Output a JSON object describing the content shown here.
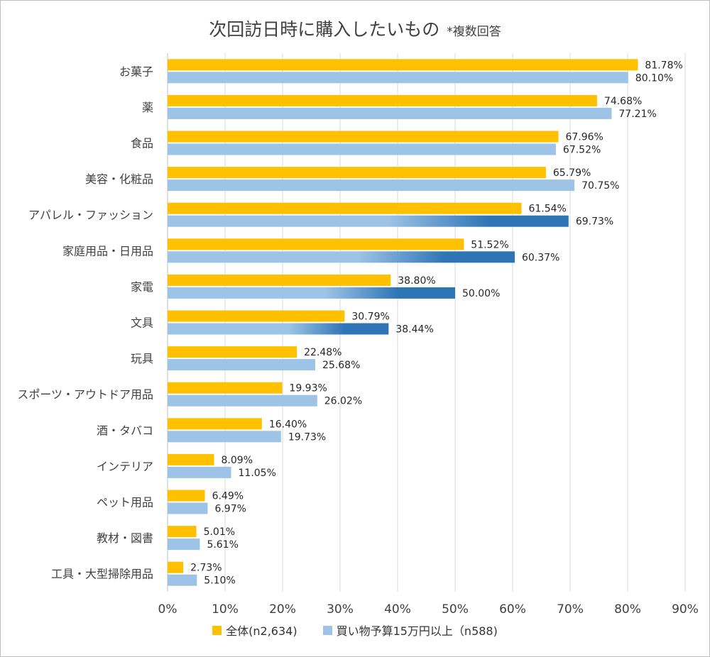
{
  "chart_data": {
    "type": "bar",
    "orientation": "horizontal",
    "title": "次回訪日時に購入したいもの",
    "subtitle": "*複数回答",
    "categories": [
      "お菓子",
      "薬",
      "食品",
      "美容・化粧品",
      "アパレル・ファッション",
      "家庭用品・日用品",
      "家電",
      "文具",
      "玩具",
      "スポーツ・アウトドア用品",
      "酒・タバコ",
      "インテリア",
      "ペット用品",
      "教材・図書",
      "工具・大型掃除用品"
    ],
    "series": [
      {
        "name": "全体(n2,634)",
        "color": "#ffc000",
        "values": [
          81.78,
          74.68,
          67.96,
          65.79,
          61.54,
          51.52,
          38.8,
          30.79,
          22.48,
          19.93,
          16.4,
          8.09,
          6.49,
          5.01,
          2.73
        ],
        "labels": [
          "81.78%",
          "74.68%",
          "67.96%",
          "65.79%",
          "61.54%",
          "51.52%",
          "38.80%",
          "30.79%",
          "22.48%",
          "19.93%",
          "16.40%",
          "8.09%",
          "6.49%",
          "5.01%",
          "2.73%"
        ]
      },
      {
        "name": "買い物予算15万円以上（n588)",
        "color": "#9dc3e6",
        "highlight_color": "#2e75b6",
        "values": [
          80.1,
          77.21,
          67.52,
          70.75,
          69.73,
          60.37,
          50.0,
          38.44,
          25.68,
          26.02,
          19.73,
          11.05,
          6.97,
          5.61,
          5.1
        ],
        "labels": [
          "80.10%",
          "77.21%",
          "67.52%",
          "70.75%",
          "69.73%",
          "60.37%",
          "50.00%",
          "38.44%",
          "25.68%",
          "26.02%",
          "19.73%",
          "11.05%",
          "6.97%",
          "5.61%",
          "5.10%"
        ],
        "highlighted": [
          false,
          false,
          false,
          false,
          true,
          true,
          true,
          true,
          false,
          false,
          false,
          false,
          false,
          false,
          false
        ]
      }
    ],
    "xlim": [
      0,
      90
    ],
    "xticks": [
      "0%",
      "10%",
      "20%",
      "30%",
      "40%",
      "50%",
      "60%",
      "70%",
      "80%",
      "90%"
    ],
    "grid": true,
    "legend_position": "bottom"
  }
}
